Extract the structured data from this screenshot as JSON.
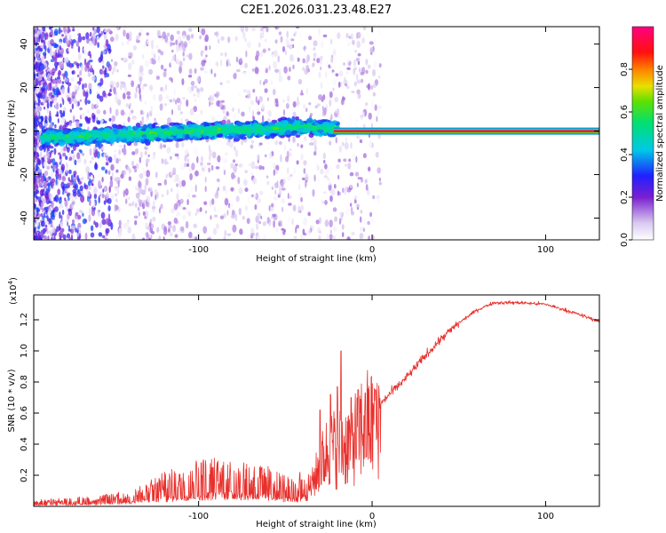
{
  "title": "C2E1.2026.031.23.48.E27",
  "chart_data": [
    {
      "type": "heatmap",
      "title": "C2E1.2026.031.23.48.E27",
      "xlabel": "Height of straight line (km)",
      "ylabel": "Frequency (Hz)",
      "xlim": [
        -195,
        131
      ],
      "ylim": [
        -50,
        48
      ],
      "xticks": [
        -100,
        0,
        100
      ],
      "xtick_labels": [
        "-100",
        "0",
        "100"
      ],
      "yticks": [
        -40,
        -20,
        0,
        20,
        40
      ],
      "ytick_labels": [
        "-40",
        "-20",
        "0",
        "20",
        "40"
      ],
      "colorbar": {
        "label": "Normalized spectral amplitude",
        "range": [
          0,
          1
        ],
        "ticks": [
          0.0,
          0.2,
          0.4,
          0.6,
          0.8
        ],
        "tick_labels": [
          "0.0",
          "0.2",
          "0.4",
          "0.6",
          "0.8"
        ]
      },
      "tone_line": {
        "x_start": -22,
        "x_end": 131,
        "frequency": 0,
        "amplitude": 0.95
      },
      "noise_band_center": [
        [
          -190,
          -3
        ],
        [
          -150,
          -2
        ],
        [
          -100,
          0
        ],
        [
          -60,
          1
        ],
        [
          -40,
          2
        ],
        [
          -22,
          1
        ]
      ]
    },
    {
      "type": "line",
      "xlabel": "Height of straight line (km)",
      "ylabel": "SNR (10 * v/v)",
      "multiplier_label": "(x10",
      "multiplier_exp": "4",
      "multiplier_close": ")",
      "xlim": [
        -195,
        131
      ],
      "ylim": [
        0,
        1.36
      ],
      "xticks": [
        -100,
        0,
        100
      ],
      "xtick_labels": [
        "-100",
        "0",
        "100"
      ],
      "yticks": [
        0.2,
        0.4,
        0.6,
        0.8,
        1.0,
        1.2
      ],
      "ytick_labels": [
        "0.2",
        "0.4",
        "0.6",
        "0.8",
        "1.0",
        "1.2"
      ],
      "series": [
        {
          "name": "SNR",
          "color": "#e8302c",
          "envelope": [
            [
              -195,
              0.02
            ],
            [
              -160,
              0.03
            ],
            [
              -140,
              0.05
            ],
            [
              -120,
              0.1
            ],
            [
              -100,
              0.14
            ],
            [
              -80,
              0.15
            ],
            [
              -60,
              0.12
            ],
            [
              -45,
              0.08
            ],
            [
              -35,
              0.15
            ],
            [
              -30,
              0.3
            ],
            [
              -25,
              0.42
            ],
            [
              -20,
              0.43
            ],
            [
              -15,
              0.45
            ],
            [
              -10,
              0.5
            ],
            [
              -5,
              0.6
            ],
            [
              0,
              0.6
            ],
            [
              10,
              0.72
            ],
            [
              20,
              0.83
            ],
            [
              30,
              0.96
            ],
            [
              40,
              1.08
            ],
            [
              50,
              1.18
            ],
            [
              60,
              1.26
            ],
            [
              70,
              1.31
            ],
            [
              85,
              1.31
            ],
            [
              100,
              1.3
            ],
            [
              115,
              1.25
            ],
            [
              131,
              1.19
            ]
          ],
          "spikes": [
            [
              -18,
              1.0
            ],
            [
              -20,
              0.77
            ],
            [
              -12,
              0.7
            ],
            [
              -8,
              0.75
            ],
            [
              -4,
              0.73
            ],
            [
              2,
              0.75
            ],
            [
              -24,
              0.72
            ],
            [
              -30,
              0.62
            ]
          ]
        }
      ]
    }
  ],
  "colors": {
    "line": "#e8302c",
    "axis": "#000000"
  }
}
